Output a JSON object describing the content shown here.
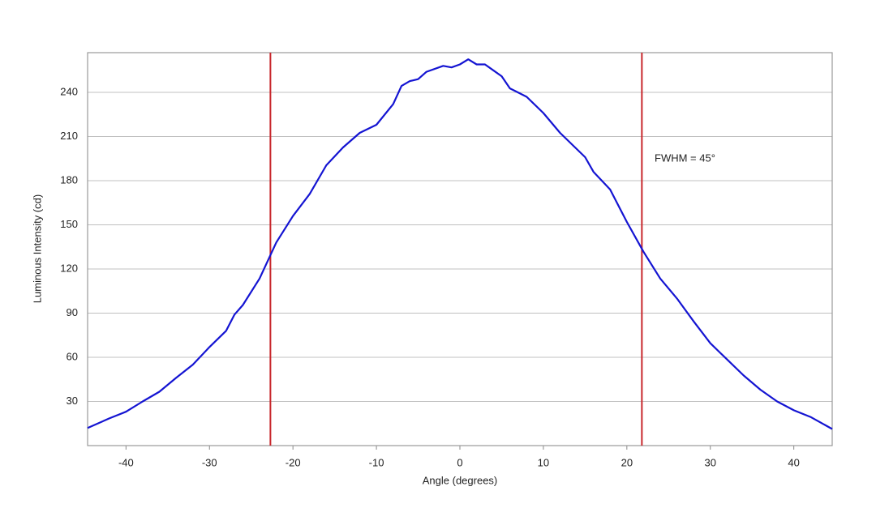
{
  "chart_data": {
    "type": "line",
    "xlabel": "Angle (degrees)",
    "ylabel": "Luminous Intensity (cd)",
    "annotation": "FWHM = 45°",
    "x": [
      -44.6,
      -42,
      -40,
      -38,
      -36,
      -34,
      -32,
      -30,
      -28,
      -27,
      -26,
      -24,
      -22,
      -20,
      -18,
      -16,
      -14,
      -12,
      -10,
      -8,
      -7,
      -6,
      -5,
      -4,
      -2,
      -1,
      0,
      1,
      2,
      3,
      4,
      5,
      6,
      8,
      10,
      12,
      14,
      15,
      16,
      18,
      20,
      22,
      24,
      26,
      28,
      30,
      32,
      34,
      36,
      38,
      40,
      42,
      44.6
    ],
    "series": [
      {
        "color": "#1414d2",
        "values": [
          12,
          18.5,
          23,
          30,
          36.6,
          46,
          55,
          67,
          78,
          89,
          95.5,
          113.5,
          138,
          156,
          171,
          190.5,
          202.6,
          212.5,
          218,
          232,
          244.4,
          247.7,
          249,
          254,
          258,
          257,
          259,
          262.5,
          259,
          259,
          255,
          251,
          242.7,
          237,
          226,
          212.5,
          201.5,
          196,
          186,
          174,
          152,
          131.7,
          113.5,
          100,
          84.4,
          69.6,
          58.6,
          47.6,
          38,
          30,
          24,
          19.5,
          11.3
        ]
      }
    ],
    "vlines": [
      -22.7,
      21.8
    ],
    "vline_color": "#c8282d",
    "xlim": [
      -44.6,
      44.6
    ],
    "ylim": [
      0,
      267
    ],
    "xticks": [
      -40,
      -30,
      -20,
      -10,
      0,
      10,
      20,
      30,
      40
    ],
    "yticks": [
      30,
      60,
      90,
      120,
      150,
      180,
      210,
      240
    ],
    "grid": true
  }
}
